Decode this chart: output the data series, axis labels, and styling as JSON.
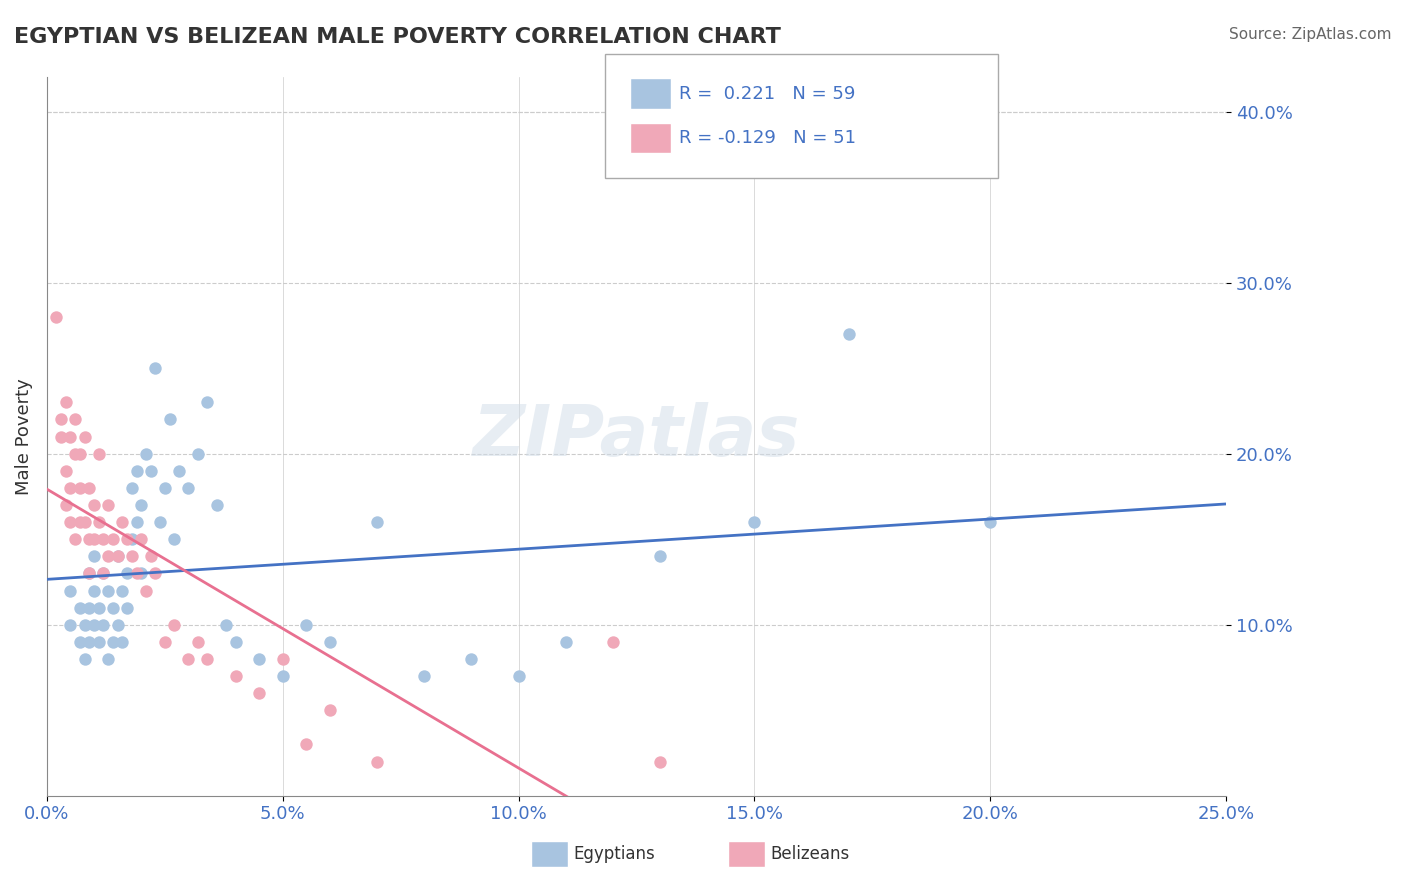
{
  "title": "EGYPTIAN VS BELIZEAN MALE POVERTY CORRELATION CHART",
  "source": "Source: ZipAtlas.com",
  "xlabel_ticks": [
    "0.0%",
    "5.0%",
    "10.0%",
    "15.0%",
    "20.0%",
    "25.0%"
  ],
  "ylabel_ticks": [
    "10.0%",
    "20.0%",
    "30.0%",
    "40.0%"
  ],
  "xlim": [
    0.0,
    0.25
  ],
  "ylim": [
    0.0,
    0.42
  ],
  "r_egyptian": 0.221,
  "n_egyptian": 59,
  "r_belizean": -0.129,
  "n_belizean": 51,
  "color_egyptian": "#a8c4e0",
  "color_belizean": "#f0a8b8",
  "color_line_egyptian": "#4472c4",
  "color_line_belizean": "#e87090",
  "watermark": "ZIPatlas",
  "legend_labels": [
    "Egyptians",
    "Belizeans"
  ],
  "egyptian_x": [
    0.005,
    0.005,
    0.007,
    0.007,
    0.008,
    0.008,
    0.009,
    0.009,
    0.009,
    0.01,
    0.01,
    0.01,
    0.011,
    0.011,
    0.012,
    0.012,
    0.013,
    0.013,
    0.014,
    0.014,
    0.015,
    0.015,
    0.016,
    0.016,
    0.017,
    0.017,
    0.018,
    0.018,
    0.019,
    0.019,
    0.02,
    0.02,
    0.021,
    0.022,
    0.023,
    0.024,
    0.025,
    0.026,
    0.027,
    0.028,
    0.03,
    0.032,
    0.034,
    0.036,
    0.038,
    0.04,
    0.045,
    0.05,
    0.055,
    0.06,
    0.07,
    0.08,
    0.09,
    0.1,
    0.11,
    0.13,
    0.15,
    0.17,
    0.2
  ],
  "egyptian_y": [
    0.12,
    0.1,
    0.09,
    0.11,
    0.1,
    0.08,
    0.09,
    0.11,
    0.13,
    0.1,
    0.12,
    0.14,
    0.11,
    0.09,
    0.1,
    0.13,
    0.12,
    0.08,
    0.09,
    0.11,
    0.1,
    0.14,
    0.12,
    0.09,
    0.11,
    0.13,
    0.15,
    0.18,
    0.16,
    0.19,
    0.17,
    0.13,
    0.2,
    0.19,
    0.25,
    0.16,
    0.18,
    0.22,
    0.15,
    0.19,
    0.18,
    0.2,
    0.23,
    0.17,
    0.1,
    0.09,
    0.08,
    0.07,
    0.1,
    0.09,
    0.16,
    0.07,
    0.08,
    0.07,
    0.09,
    0.14,
    0.16,
    0.27,
    0.16
  ],
  "belizean_x": [
    0.002,
    0.003,
    0.003,
    0.004,
    0.004,
    0.004,
    0.005,
    0.005,
    0.005,
    0.006,
    0.006,
    0.006,
    0.007,
    0.007,
    0.007,
    0.008,
    0.008,
    0.009,
    0.009,
    0.009,
    0.01,
    0.01,
    0.011,
    0.011,
    0.012,
    0.012,
    0.013,
    0.013,
    0.014,
    0.015,
    0.016,
    0.017,
    0.018,
    0.019,
    0.02,
    0.021,
    0.022,
    0.023,
    0.025,
    0.027,
    0.03,
    0.032,
    0.034,
    0.04,
    0.045,
    0.05,
    0.055,
    0.06,
    0.07,
    0.12,
    0.13
  ],
  "belizean_y": [
    0.28,
    0.22,
    0.21,
    0.23,
    0.19,
    0.17,
    0.21,
    0.18,
    0.16,
    0.2,
    0.22,
    0.15,
    0.18,
    0.16,
    0.2,
    0.21,
    0.16,
    0.15,
    0.18,
    0.13,
    0.17,
    0.15,
    0.16,
    0.2,
    0.15,
    0.13,
    0.14,
    0.17,
    0.15,
    0.14,
    0.16,
    0.15,
    0.14,
    0.13,
    0.15,
    0.12,
    0.14,
    0.13,
    0.09,
    0.1,
    0.08,
    0.09,
    0.08,
    0.07,
    0.06,
    0.08,
    0.03,
    0.05,
    0.02,
    0.09,
    0.02
  ]
}
